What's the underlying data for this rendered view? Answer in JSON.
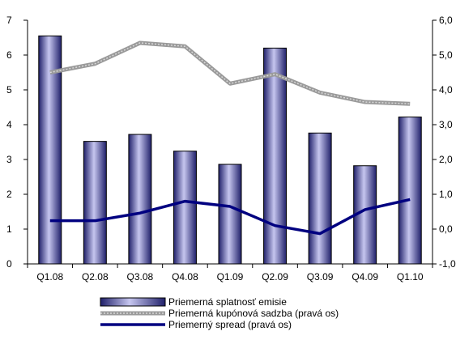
{
  "chart_data": {
    "type": "bar",
    "categories": [
      "Q1.08",
      "Q2.08",
      "Q3.08",
      "Q4.08",
      "Q1.09",
      "Q2.09",
      "Q3.09",
      "Q4.09",
      "Q1.10"
    ],
    "series": [
      {
        "name": "Priemerná splatnosť emisie",
        "type": "bar",
        "axis": "left",
        "values": [
          6.55,
          3.52,
          3.72,
          3.24,
          2.86,
          6.2,
          3.76,
          2.82,
          4.22
        ]
      },
      {
        "name": "Priemerná kupónová sadzba (pravá os)",
        "type": "line",
        "axis": "right",
        "values": [
          4.5,
          4.75,
          5.35,
          5.25,
          4.18,
          4.45,
          3.92,
          3.65,
          3.6
        ]
      },
      {
        "name": "Priemerný spread (pravá os)",
        "type": "line",
        "axis": "right",
        "values": [
          0.24,
          0.24,
          0.46,
          0.8,
          0.65,
          0.1,
          -0.13,
          0.56,
          0.85
        ]
      }
    ],
    "ylim_left": [
      0,
      7
    ],
    "ylim_right": [
      -1,
      6
    ],
    "yticks_left": [
      "0",
      "1",
      "2",
      "3",
      "4",
      "5",
      "6",
      "7"
    ],
    "yticks_right": [
      "-1,0",
      "0,0",
      "1,0",
      "2,0",
      "3,0",
      "4,0",
      "5,0",
      "6,0"
    ],
    "legend_position": "bottom",
    "colors": {
      "bar_light": "#c6c6ef",
      "bar_mid": "#6666cc",
      "bar_dark": "#20206a",
      "coupon_line": "#9a9a9a",
      "spread_line": "#000080"
    }
  }
}
